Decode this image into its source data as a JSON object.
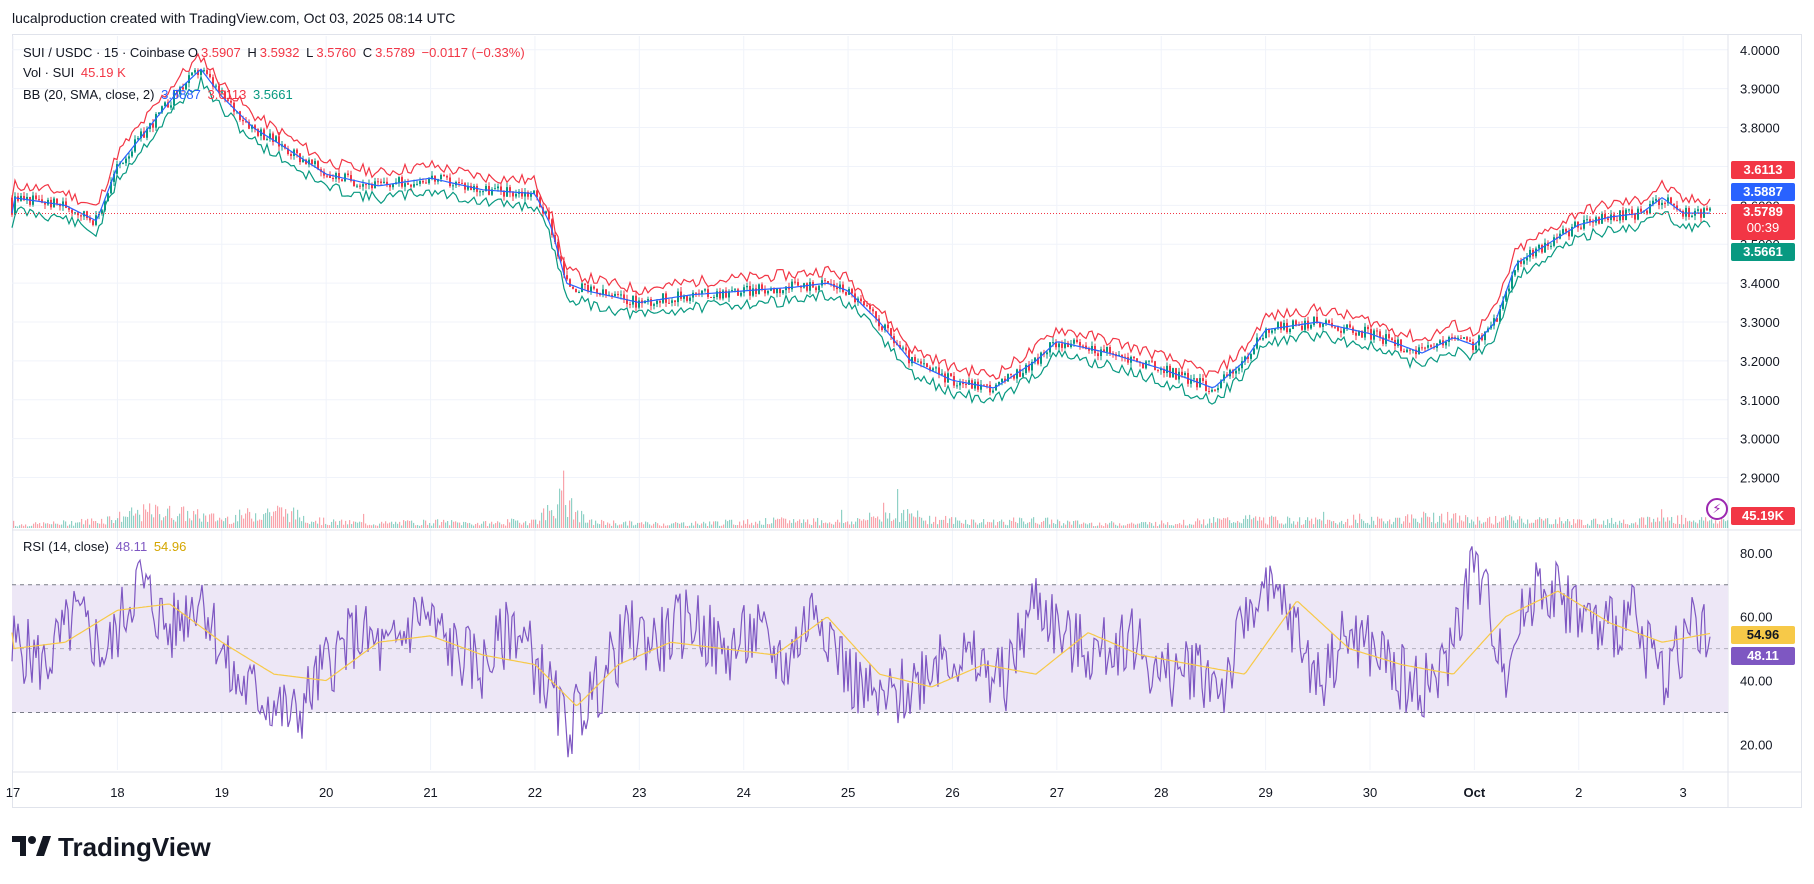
{
  "header": {
    "attribution": "lucalproduction created with TradingView.com, Oct 03, 2025 08:14 UTC"
  },
  "legend": {
    "symbol": "SUI / USDC · 15 · Coinbase",
    "open_label": "O",
    "open": "3.5907",
    "high_label": "H",
    "high": "3.5932",
    "low_label": "L",
    "low": "3.5760",
    "close_label": "C",
    "close": "3.5789",
    "change": "−0.0117 (−0.33%)",
    "vol_label": "Vol · SUI",
    "vol": "45.19 K",
    "bb_label": "BB (20, SMA, close, 2)",
    "bb_mid": "3.5887",
    "bb_upper": "3.6113",
    "bb_lower": "3.5661",
    "rsi_label": "RSI (14, close)",
    "rsi": "48.11",
    "rsi_ma": "54.96"
  },
  "tags": {
    "bb_upper": "3.6113",
    "bb_mid": "3.5887",
    "close": "3.5789",
    "countdown": "00:39",
    "bb_lower": "3.5661",
    "volume": "45.19K",
    "rsi_ma": "54.96",
    "rsi": "48.11"
  },
  "colors": {
    "up": "#089981",
    "down": "#f23645",
    "bb_basis": "#2962ff",
    "bb_upper": "#f23645",
    "bb_lower": "#089981",
    "rsi": "#7e57c2",
    "rsi_ma": "#f7c948",
    "band_fill": "#ede7f6"
  },
  "brand": {
    "name": "TradingView"
  },
  "chart_data": [
    {
      "type": "line",
      "title": "SUI / USDC · 15 · Coinbase",
      "ylim": [
        2.85,
        4.02
      ],
      "y_ticks": [
        "4.0000",
        "3.9000",
        "3.8000",
        "3.7000",
        "3.6000",
        "3.5000",
        "3.4000",
        "3.3000",
        "3.2000",
        "3.1000",
        "3.0000",
        "2.9000"
      ],
      "x_ticks": [
        "17",
        "18",
        "19",
        "20",
        "21",
        "22",
        "23",
        "24",
        "25",
        "26",
        "27",
        "28",
        "29",
        "30",
        "Oct",
        "2",
        "3"
      ],
      "x_range": [
        16.99,
        33.43
      ],
      "series": [
        {
          "name": "BB",
          "x": [
            17.0,
            17.5,
            17.8,
            18.0,
            18.3,
            18.6,
            18.8,
            19.0,
            19.3,
            19.6,
            20.0,
            20.5,
            21.0,
            21.5,
            22.0,
            22.15,
            22.3,
            22.5,
            23.0,
            23.5,
            24.0,
            24.5,
            24.8,
            25.0,
            25.3,
            25.6,
            26.0,
            26.4,
            26.8,
            27.0,
            27.5,
            28.0,
            28.5,
            28.8,
            29.0,
            29.5,
            30.0,
            30.5,
            30.8,
            31.0,
            31.2,
            31.4,
            31.7,
            32.0,
            32.3,
            32.6,
            32.8,
            33.0,
            33.3
          ],
          "values": [
            3.62,
            3.6,
            3.56,
            3.7,
            3.8,
            3.9,
            3.95,
            3.88,
            3.8,
            3.75,
            3.68,
            3.65,
            3.67,
            3.64,
            3.63,
            3.55,
            3.4,
            3.38,
            3.35,
            3.37,
            3.38,
            3.39,
            3.4,
            3.38,
            3.3,
            3.2,
            3.15,
            3.13,
            3.2,
            3.25,
            3.22,
            3.18,
            3.13,
            3.2,
            3.28,
            3.3,
            3.27,
            3.22,
            3.26,
            3.24,
            3.3,
            3.45,
            3.5,
            3.55,
            3.57,
            3.58,
            3.62,
            3.58,
            3.58
          ]
        }
      ],
      "last_price": 3.5789,
      "ylabel": "",
      "xlabel": ""
    },
    {
      "type": "bar",
      "title": "Vol · SUI",
      "x": [
        17.0,
        17.4,
        17.8,
        18.3,
        18.6,
        19.0,
        19.5,
        20.0,
        20.5,
        21.0,
        21.5,
        22.0,
        22.25,
        22.5,
        23.0,
        23.5,
        24.0,
        24.5,
        25.0,
        25.45,
        25.8,
        26.3,
        26.8,
        27.3,
        27.8,
        28.3,
        28.8,
        29.3,
        29.8,
        30.3,
        30.65,
        31.0,
        31.3,
        31.7,
        32.1,
        32.5,
        32.9,
        33.3
      ],
      "values": [
        0.1,
        0.15,
        0.25,
        0.55,
        0.5,
        0.3,
        0.6,
        0.2,
        0.15,
        0.2,
        0.15,
        0.25,
        0.95,
        0.2,
        0.15,
        0.15,
        0.2,
        0.25,
        0.2,
        0.5,
        0.3,
        0.2,
        0.25,
        0.15,
        0.15,
        0.2,
        0.3,
        0.25,
        0.2,
        0.3,
        0.4,
        0.25,
        0.3,
        0.25,
        0.2,
        0.25,
        0.3,
        0.25
      ],
      "last_value": "45.19K"
    },
    {
      "type": "line",
      "title": "RSI (14, close)",
      "ylim": [
        12,
        84
      ],
      "y_ticks": [
        "80.00",
        "60.00",
        "40.00",
        "20.00"
      ],
      "bands": [
        30,
        50,
        70
      ],
      "series": [
        {
          "name": "RSI",
          "x": [
            17.0,
            17.3,
            17.6,
            17.9,
            18.2,
            18.5,
            18.8,
            19.1,
            19.4,
            19.7,
            20.0,
            20.3,
            20.6,
            20.9,
            21.2,
            21.5,
            21.8,
            22.1,
            22.3,
            22.6,
            22.9,
            23.2,
            23.5,
            23.8,
            24.1,
            24.4,
            24.7,
            25.0,
            25.3,
            25.6,
            25.9,
            26.2,
            26.5,
            26.8,
            27.1,
            27.4,
            27.7,
            28.0,
            28.3,
            28.6,
            28.9,
            29.2,
            29.5,
            29.8,
            30.1,
            30.4,
            30.7,
            31.0,
            31.3,
            31.6,
            31.9,
            32.2,
            32.5,
            32.8,
            33.1,
            33.3
          ],
          "values": [
            52,
            45,
            60,
            48,
            72,
            55,
            68,
            40,
            35,
            28,
            45,
            55,
            48,
            62,
            50,
            44,
            58,
            40,
            25,
            38,
            55,
            52,
            60,
            48,
            55,
            45,
            65,
            42,
            32,
            38,
            50,
            45,
            40,
            66,
            52,
            48,
            55,
            40,
            45,
            38,
            68,
            62,
            40,
            55,
            48,
            38,
            42,
            78,
            45,
            72,
            65,
            55,
            60,
            42,
            58,
            48
          ]
        },
        {
          "name": "RSI MA",
          "x": [
            17.0,
            17.5,
            18.0,
            18.5,
            19.0,
            19.5,
            20.0,
            20.5,
            21.0,
            21.5,
            22.0,
            22.4,
            22.8,
            23.3,
            23.8,
            24.3,
            24.8,
            25.3,
            25.8,
            26.3,
            26.8,
            27.3,
            27.8,
            28.3,
            28.8,
            29.3,
            29.8,
            30.3,
            30.8,
            31.3,
            31.8,
            32.3,
            32.8,
            33.3
          ],
          "values": [
            50,
            52,
            62,
            64,
            52,
            42,
            40,
            52,
            54,
            48,
            45,
            32,
            45,
            52,
            50,
            48,
            60,
            42,
            38,
            45,
            42,
            55,
            48,
            45,
            42,
            65,
            50,
            45,
            42,
            60,
            68,
            58,
            52,
            55
          ]
        }
      ],
      "last_value": 48.11,
      "last_ma": 54.96
    }
  ]
}
